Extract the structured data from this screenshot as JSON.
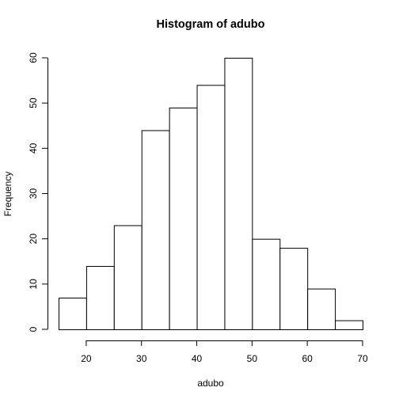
{
  "chart_data": {
    "type": "bar",
    "title": "Histogram of adubo",
    "xlabel": "adubo",
    "ylabel": "Frequency",
    "bins": [
      {
        "start": 15,
        "end": 20,
        "count": 7
      },
      {
        "start": 20,
        "end": 25,
        "count": 14
      },
      {
        "start": 25,
        "end": 30,
        "count": 23
      },
      {
        "start": 30,
        "end": 35,
        "count": 44
      },
      {
        "start": 35,
        "end": 40,
        "count": 49
      },
      {
        "start": 40,
        "end": 45,
        "count": 54
      },
      {
        "start": 45,
        "end": 50,
        "count": 60
      },
      {
        "start": 50,
        "end": 55,
        "count": 20
      },
      {
        "start": 55,
        "end": 60,
        "count": 18
      },
      {
        "start": 60,
        "end": 65,
        "count": 9
      },
      {
        "start": 65,
        "end": 70,
        "count": 2
      }
    ],
    "xlim": [
      15,
      70
    ],
    "ylim": [
      0,
      60
    ],
    "x_ticks": [
      20,
      30,
      40,
      50,
      60,
      70
    ],
    "y_ticks": [
      0,
      10,
      20,
      30,
      40,
      50,
      60
    ],
    "grid": false,
    "legend": "none"
  }
}
